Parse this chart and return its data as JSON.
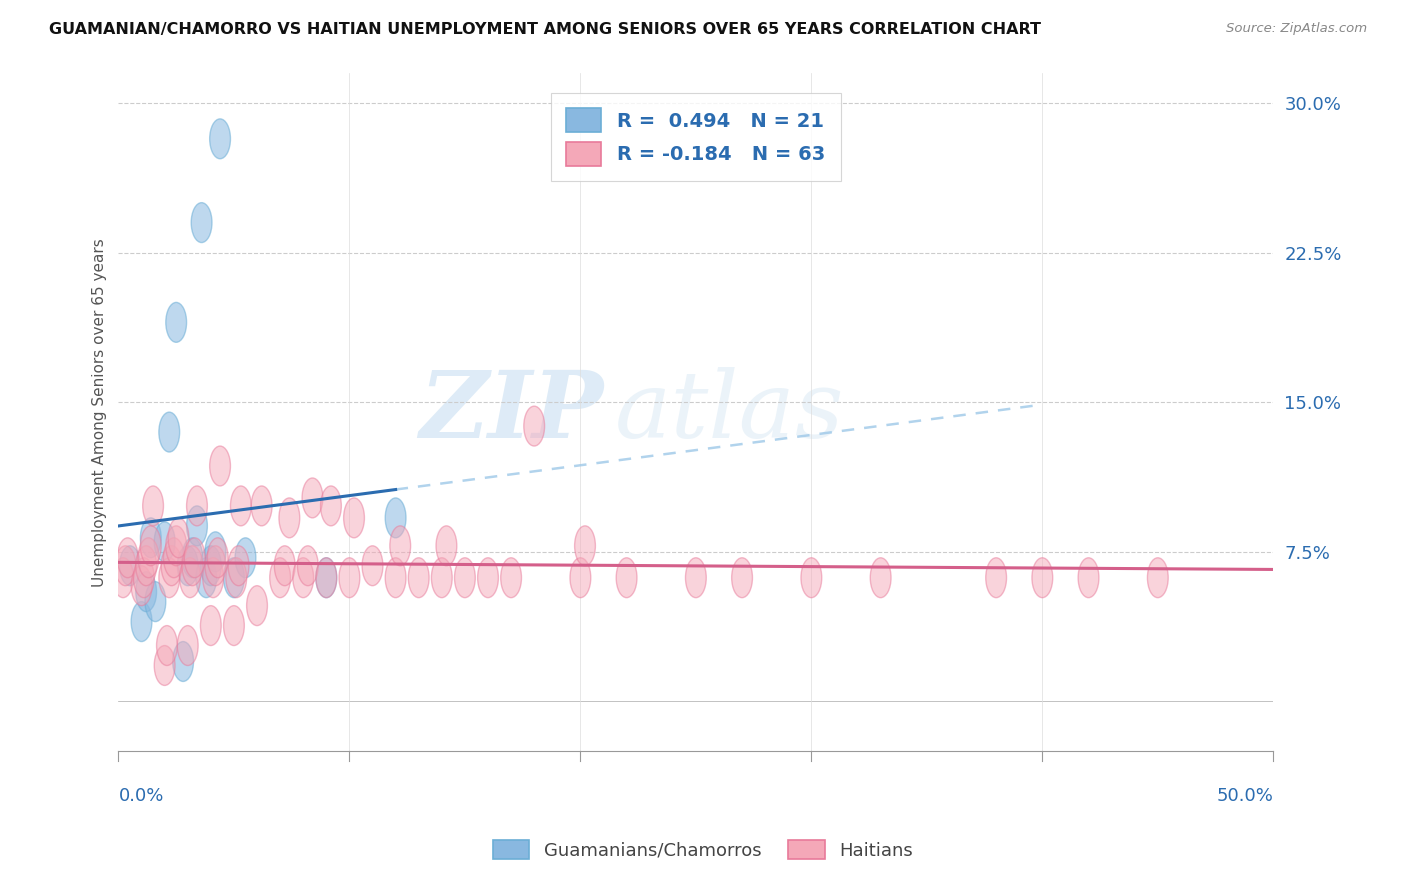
{
  "title": "GUAMANIAN/CHAMORRO VS HAITIAN UNEMPLOYMENT AMONG SENIORS OVER 65 YEARS CORRELATION CHART",
  "source": "Source: ZipAtlas.com",
  "ylabel": "Unemployment Among Seniors over 65 years",
  "xlim": [
    0.0,
    0.5
  ],
  "ylim": [
    -0.025,
    0.315
  ],
  "blue_R": 0.494,
  "blue_N": 21,
  "pink_R": -0.184,
  "pink_N": 63,
  "blue_color": "#89b8e0",
  "blue_edge": "#6baed6",
  "pink_color": "#f4a8b8",
  "pink_edge": "#e87a9a",
  "blue_line_color": "#2b6cb0",
  "blue_dash_color": "#9ec8e8",
  "pink_line_color": "#d45f8a",
  "blue_label": "Guamanians/Chamorros",
  "pink_label": "Haitians",
  "watermark_zip": "ZIP",
  "watermark_atlas": "atlas",
  "ytick_vals": [
    0.075,
    0.15,
    0.225,
    0.3
  ],
  "ytick_labels": [
    "7.5%",
    "15.0%",
    "22.5%",
    "30.0%"
  ],
  "guam_x": [
    0.005,
    0.01,
    0.012,
    0.014,
    0.016,
    0.02,
    0.022,
    0.025,
    0.028,
    0.03,
    0.032,
    0.034,
    0.036,
    0.038,
    0.04,
    0.042,
    0.044,
    0.05,
    0.055,
    0.09,
    0.12
  ],
  "guam_y": [
    0.068,
    0.04,
    0.055,
    0.082,
    0.05,
    0.08,
    0.135,
    0.19,
    0.02,
    0.068,
    0.072,
    0.088,
    0.24,
    0.062,
    0.068,
    0.075,
    0.282,
    0.062,
    0.072,
    0.062,
    0.092
  ],
  "haiti_x": [
    0.002,
    0.003,
    0.004,
    0.01,
    0.011,
    0.012,
    0.013,
    0.014,
    0.015,
    0.02,
    0.021,
    0.022,
    0.023,
    0.024,
    0.025,
    0.026,
    0.03,
    0.031,
    0.032,
    0.033,
    0.034,
    0.04,
    0.041,
    0.042,
    0.043,
    0.044,
    0.05,
    0.051,
    0.052,
    0.053,
    0.06,
    0.062,
    0.07,
    0.072,
    0.074,
    0.08,
    0.082,
    0.084,
    0.09,
    0.092,
    0.1,
    0.102,
    0.11,
    0.12,
    0.122,
    0.13,
    0.14,
    0.142,
    0.15,
    0.16,
    0.17,
    0.18,
    0.2,
    0.202,
    0.22,
    0.25,
    0.27,
    0.3,
    0.33,
    0.38,
    0.4,
    0.42,
    0.45
  ],
  "haiti_y": [
    0.062,
    0.068,
    0.072,
    0.058,
    0.062,
    0.068,
    0.072,
    0.078,
    0.098,
    0.018,
    0.028,
    0.062,
    0.068,
    0.072,
    0.078,
    0.082,
    0.028,
    0.062,
    0.068,
    0.072,
    0.098,
    0.038,
    0.062,
    0.068,
    0.072,
    0.118,
    0.038,
    0.062,
    0.068,
    0.098,
    0.048,
    0.098,
    0.062,
    0.068,
    0.092,
    0.062,
    0.068,
    0.102,
    0.062,
    0.098,
    0.062,
    0.092,
    0.068,
    0.062,
    0.078,
    0.062,
    0.062,
    0.078,
    0.062,
    0.062,
    0.062,
    0.138,
    0.062,
    0.078,
    0.062,
    0.062,
    0.062,
    0.062,
    0.062,
    0.062,
    0.062,
    0.062,
    0.062
  ]
}
